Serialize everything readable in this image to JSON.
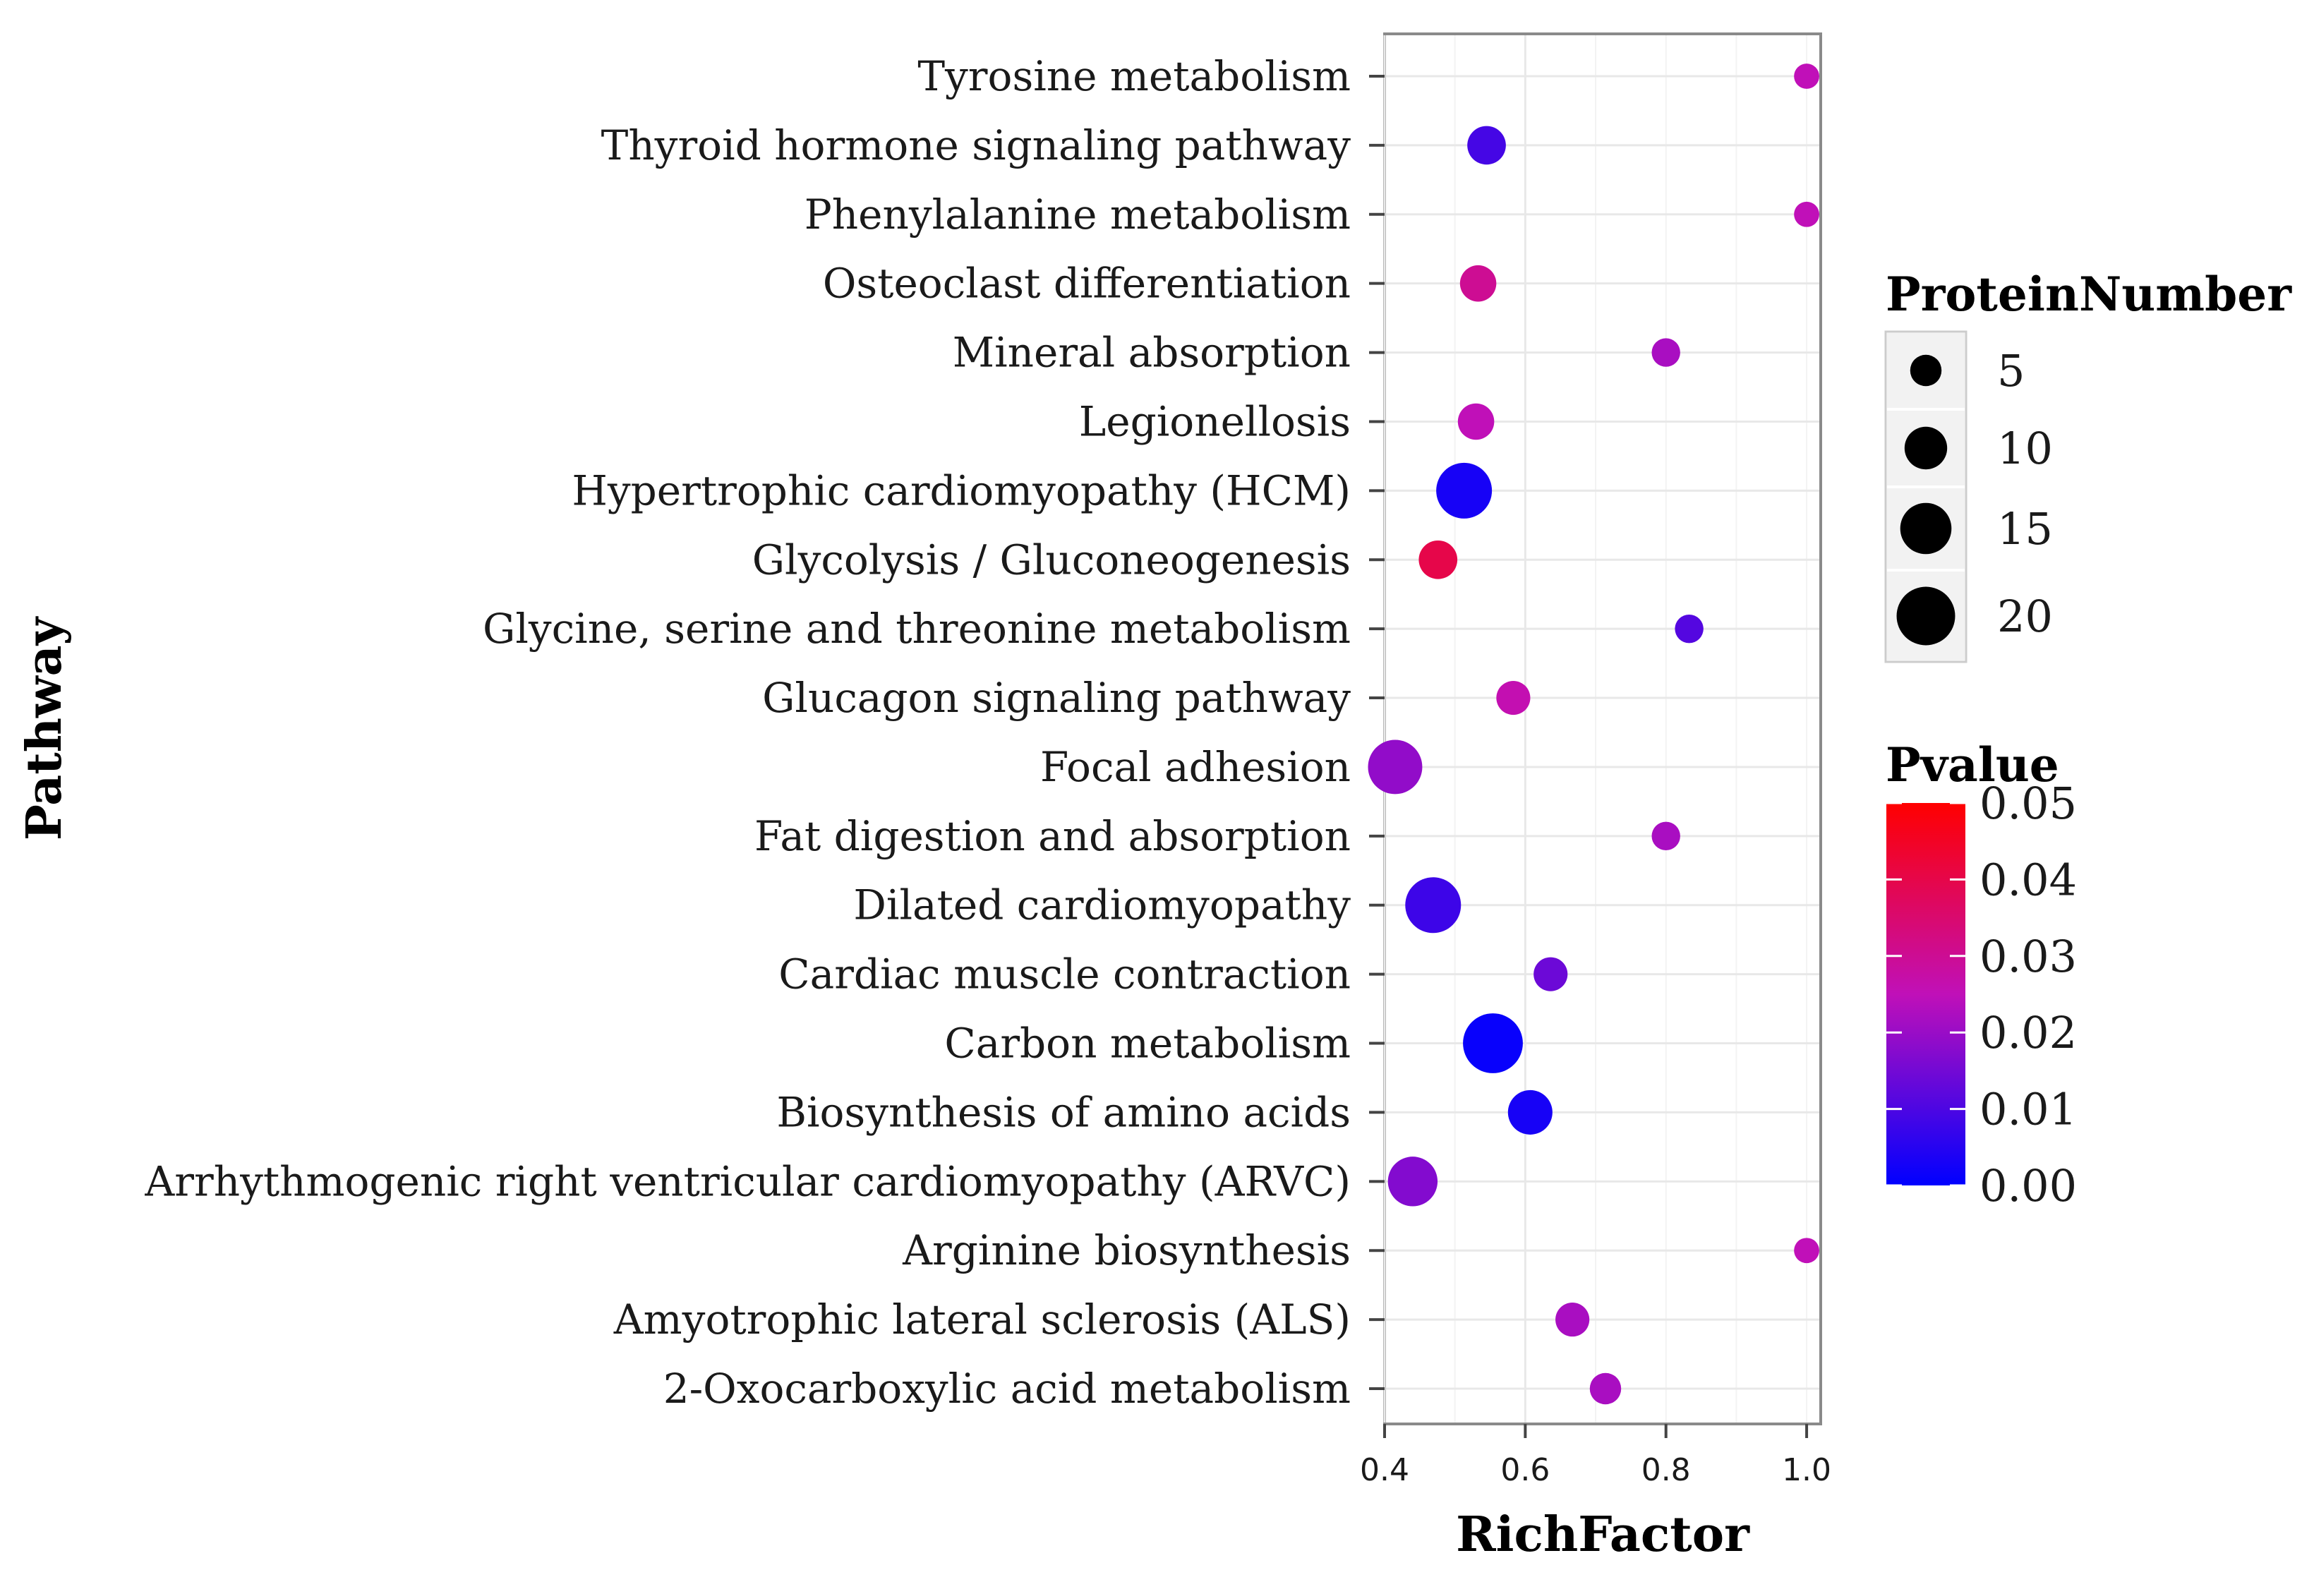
{
  "chart_data": {
    "type": "scatter",
    "xlabel": "RichFactor",
    "ylabel": "Pathway",
    "xlim": [
      0.4,
      1.02
    ],
    "xticks": [
      "0.4",
      "0.6",
      "0.8",
      "1.0"
    ],
    "grid": true,
    "categories": [
      "Tyrosine metabolism",
      "Thyroid hormone signaling pathway",
      "Phenylalanine metabolism",
      "Osteoclast differentiation",
      "Mineral absorption",
      "Legionellosis",
      "Hypertrophic cardiomyopathy (HCM)",
      "Glycolysis / Gluconeogenesis",
      "Glycine, serine and threonine metabolism",
      "Glucagon signaling pathway",
      "Focal adhesion",
      "Fat digestion and absorption",
      "Dilated cardiomyopathy",
      "Cardiac muscle contraction",
      "Carbon metabolism",
      "Biosynthesis of amino acids",
      "Arrhythmogenic right ventricular cardiomyopathy (ARVC)",
      "Arginine biosynthesis",
      "Amyotrophic lateral sclerosis (ALS)",
      "2-Oxocarboxylic acid metabolism"
    ],
    "points": [
      {
        "pathway": "Tyrosine metabolism",
        "rich_factor": 1.0,
        "protein_number": 3,
        "pvalue": 0.025
      },
      {
        "pathway": "Thyroid hormone signaling pathway",
        "rich_factor": 0.545,
        "protein_number": 8,
        "pvalue": 0.009
      },
      {
        "pathway": "Phenylalanine metabolism",
        "rich_factor": 1.0,
        "protein_number": 3,
        "pvalue": 0.025
      },
      {
        "pathway": "Osteoclast differentiation",
        "rich_factor": 0.533,
        "protein_number": 7,
        "pvalue": 0.03
      },
      {
        "pathway": "Mineral absorption",
        "rich_factor": 0.8,
        "protein_number": 4,
        "pvalue": 0.022
      },
      {
        "pathway": "Legionellosis",
        "rich_factor": 0.53,
        "protein_number": 7,
        "pvalue": 0.025
      },
      {
        "pathway": "Hypertrophic cardiomyopathy (HCM)",
        "rich_factor": 0.513,
        "protein_number": 18,
        "pvalue": 0.003
      },
      {
        "pathway": "Glycolysis / Gluconeogenesis",
        "rich_factor": 0.476,
        "protein_number": 8,
        "pvalue": 0.04
      },
      {
        "pathway": "Glycine, serine and threonine metabolism",
        "rich_factor": 0.833,
        "protein_number": 4,
        "pvalue": 0.011
      },
      {
        "pathway": "Glucagon signaling pathway",
        "rich_factor": 0.583,
        "protein_number": 6,
        "pvalue": 0.026
      },
      {
        "pathway": "Focal adhesion",
        "rich_factor": 0.415,
        "protein_number": 17,
        "pvalue": 0.019
      },
      {
        "pathway": "Fat digestion and absorption",
        "rich_factor": 0.8,
        "protein_number": 4,
        "pvalue": 0.022
      },
      {
        "pathway": "Dilated cardiomyopathy",
        "rich_factor": 0.469,
        "protein_number": 18,
        "pvalue": 0.008
      },
      {
        "pathway": "Cardiac muscle contraction",
        "rich_factor": 0.636,
        "protein_number": 6,
        "pvalue": 0.014
      },
      {
        "pathway": "Carbon metabolism",
        "rich_factor": 0.554,
        "protein_number": 21,
        "pvalue": 0.001
      },
      {
        "pathway": "Biosynthesis of amino acids",
        "rich_factor": 0.607,
        "protein_number": 11,
        "pvalue": 0.003
      },
      {
        "pathway": "Arrhythmogenic right ventricular cardiomyopathy (ARVC)",
        "rich_factor": 0.44,
        "protein_number": 14,
        "pvalue": 0.017
      },
      {
        "pathway": "Arginine biosynthesis",
        "rich_factor": 1.0,
        "protein_number": 3,
        "pvalue": 0.025
      },
      {
        "pathway": "Amyotrophic lateral sclerosis (ALS)",
        "rich_factor": 0.667,
        "protein_number": 6,
        "pvalue": 0.022
      },
      {
        "pathway": "2-Oxocarboxylic acid metabolism",
        "rich_factor": 0.714,
        "protein_number": 5,
        "pvalue": 0.022
      }
    ],
    "size_legend": {
      "title": "ProteinNumber",
      "values": [
        5,
        10,
        15,
        20
      ],
      "labels": [
        "5",
        "10",
        "15",
        "20"
      ]
    },
    "color_legend": {
      "title": "Pvalue",
      "range": [
        0.0,
        0.05
      ],
      "labels": [
        "0.05",
        "0.04",
        "0.03",
        "0.02",
        "0.01",
        "0.00"
      ],
      "low_color": "#0000ff",
      "high_color": "#ff0000"
    },
    "legend_position": "right"
  }
}
